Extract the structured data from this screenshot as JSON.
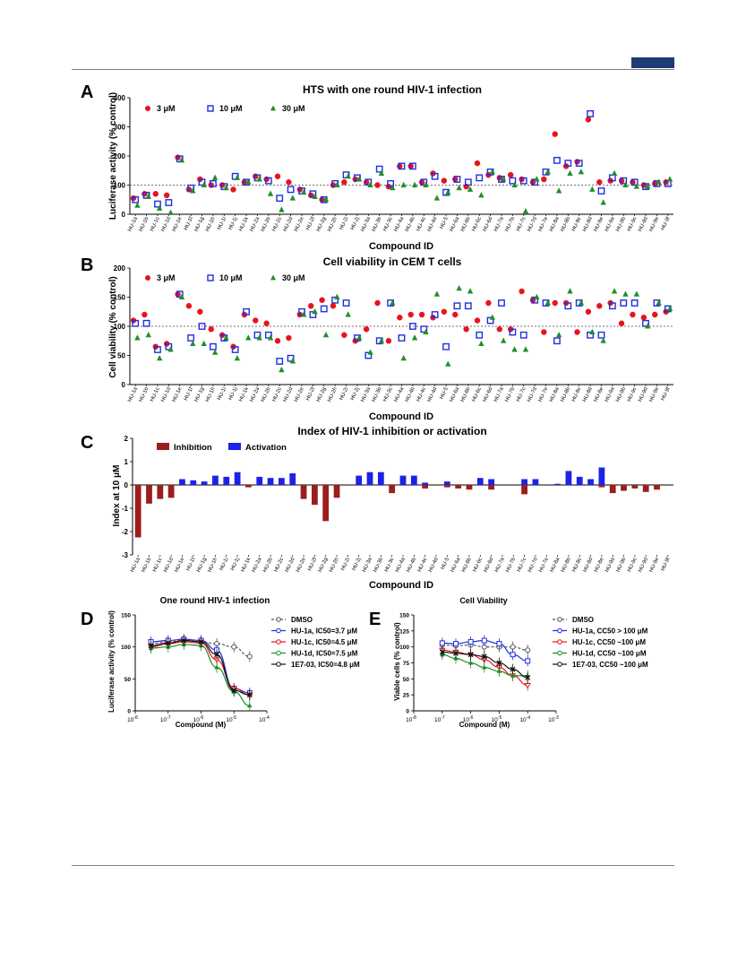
{
  "panels": {
    "A": {
      "letter": "A",
      "title": "HTS with one round HIV-1 infection",
      "xlabel": "Compound ID",
      "ylabel": "Luciferase activity (% control)",
      "legend": [
        "3 μM",
        "10 μM",
        "30 μM"
      ]
    },
    "B": {
      "letter": "B",
      "title": "Cell viability in CEM T cells",
      "xlabel": "Compound ID",
      "ylabel": "Cell viability  (% control)",
      "legend": [
        "3 μM",
        "10 μM",
        "30 μM"
      ]
    },
    "C": {
      "letter": "C",
      "title": "Index of HIV-1 inhibition or activation",
      "xlabel": "Compound ID",
      "ylabel": "Index at 10 μM",
      "legend": [
        "Inhibition",
        "Activation"
      ]
    },
    "D": {
      "letter": "D",
      "title": "One round HIV-1 infection",
      "xlabel": "Compound (M)",
      "ylabel": "Luciferase activity (% control)",
      "legend": [
        "DMSO",
        "HU-1a, IC50=3.7 μM",
        "HU-1c, IC50=4.5 μM",
        "HU-1d, IC50=7.5 μM",
        "1E7-03, IC50=4.8 μM"
      ]
    },
    "E": {
      "letter": "E",
      "title": "Cell Viability",
      "xlabel": "Compound (M)",
      "ylabel": "Viable cells (% control)",
      "legend": [
        "DMSO",
        "HU-1a, CC50 > 100 μM",
        "HU-1c, CC50 ~100 μM",
        "HU-1d, CC50 ~100 μM",
        "1E7-03, CC50 ~100 μM"
      ]
    }
  },
  "colors": {
    "red": "#e8141b",
    "blue": "#1f2fe0",
    "green": "#1f8f2a",
    "darkred": "#9c1d1d",
    "barblue": "#1c22e6",
    "black": "#111111",
    "gray": "#555555"
  },
  "chart_data": [
    {
      "id": "A",
      "type": "scatter",
      "title": "HTS with one round HIV-1 infection",
      "xlabel": "Compound ID",
      "ylabel": "Luciferase activity (% control)",
      "ylim": [
        0,
        400
      ],
      "yticks": [
        0,
        100,
        200,
        300,
        400
      ],
      "reference_line": 100,
      "categories": [
        "HU-1a",
        "HU-1b",
        "HU-1c",
        "HU-1d",
        "HU-1e",
        "HU-1f",
        "HU-1g",
        "HU-1h",
        "HU-1i",
        "HU-1j",
        "HU-1k",
        "HU-2a",
        "HU-2b",
        "HU-2c",
        "HU-2d",
        "HU-2e",
        "HU-2f",
        "HU-2g",
        "HU-2h",
        "HU-2i",
        "HU-2j",
        "HU-3a",
        "HU-3b",
        "HU-3c",
        "HU-4a",
        "HU-4b",
        "HU-4c",
        "HU-4d",
        "HU-5",
        "HU-6a",
        "HU-6b",
        "HU-6c",
        "HU-6d",
        "HU-7a",
        "HU-7b",
        "HU-7c",
        "HU-7d",
        "HU-7e",
        "HU-8a",
        "HU-8b",
        "HU-8c",
        "HU-8d",
        "HU-8e",
        "HU-9a",
        "HU-9b",
        "HU-9c",
        "HU-9d",
        "HU-9e",
        "HU-9f"
      ],
      "series": [
        {
          "name": "3 μM",
          "marker": "circle",
          "values": [
            55,
            70,
            70,
            65,
            195,
            85,
            120,
            100,
            100,
            85,
            110,
            130,
            120,
            130,
            110,
            85,
            65,
            50,
            100,
            110,
            120,
            110,
            100,
            95,
            165,
            165,
            110,
            140,
            115,
            120,
            95,
            175,
            135,
            125,
            135,
            120,
            110,
            120,
            275,
            165,
            180,
            325,
            110,
            115,
            115,
            110,
            100,
            105,
            110
          ]
        },
        {
          "name": "10 μM",
          "marker": "square",
          "values": [
            50,
            65,
            35,
            40,
            190,
            90,
            110,
            105,
            95,
            130,
            110,
            125,
            115,
            55,
            85,
            80,
            70,
            50,
            105,
            135,
            125,
            110,
            155,
            105,
            165,
            165,
            110,
            130,
            75,
            120,
            110,
            125,
            145,
            120,
            115,
            115,
            110,
            145,
            185,
            175,
            175,
            345,
            80,
            125,
            115,
            110,
            95,
            105,
            105
          ]
        },
        {
          "name": "30 μM",
          "marker": "triangle",
          "values": [
            30,
            60,
            20,
            5,
            185,
            80,
            100,
            125,
            90,
            125,
            110,
            120,
            70,
            15,
            55,
            75,
            60,
            50,
            100,
            130,
            120,
            100,
            140,
            90,
            100,
            100,
            100,
            55,
            75,
            90,
            85,
            65,
            145,
            120,
            100,
            10,
            120,
            145,
            80,
            140,
            145,
            85,
            40,
            140,
            100,
            95,
            95,
            110,
            120
          ]
        }
      ]
    },
    {
      "id": "B",
      "type": "scatter",
      "title": "Cell viability in CEM T cells",
      "xlabel": "Compound ID",
      "ylabel": "Cell viability  (% control)",
      "ylim": [
        0,
        200
      ],
      "yticks": [
        0,
        50,
        100,
        150,
        200
      ],
      "reference_line": 100,
      "categories": [
        "HU-1a",
        "HU-1b",
        "HU-1c",
        "HU-1d",
        "HU-1e",
        "HU-1f",
        "HU-1g",
        "HU-1h",
        "HU-1i",
        "HU-1j",
        "HU-1k",
        "HU-2a",
        "HU-2b",
        "HU-2c",
        "HU-2d",
        "HU-2e",
        "HU-2f",
        "HU-2g",
        "HU-2h",
        "HU-2i",
        "HU-2j",
        "HU-3a",
        "HU-3b",
        "HU-3c",
        "HU-4a",
        "HU-4b",
        "HU-4c",
        "HU-4d",
        "HU-5",
        "HU-6a",
        "HU-6b",
        "HU-6c",
        "HU-6d",
        "HU-7a",
        "HU-7b",
        "HU-7c",
        "HU-7d",
        "HU-7e",
        "HU-8a",
        "HU-8b",
        "HU-8c",
        "HU-8d",
        "HU-8e",
        "HU-9a",
        "HU-9b",
        "HU-9c",
        "HU-9d",
        "HU-9e",
        "HU-9f"
      ],
      "series": [
        {
          "name": "3 μM",
          "marker": "circle",
          "values": [
            110,
            120,
            65,
            70,
            155,
            135,
            125,
            95,
            85,
            65,
            120,
            110,
            105,
            75,
            80,
            120,
            135,
            145,
            135,
            85,
            75,
            95,
            140,
            75,
            115,
            120,
            120,
            115,
            125,
            120,
            95,
            110,
            140,
            95,
            95,
            160,
            145,
            90,
            140,
            140,
            90,
            125,
            135,
            140,
            105,
            120,
            115,
            120,
            125
          ]
        },
        {
          "name": "10 μM",
          "marker": "square",
          "values": [
            105,
            105,
            60,
            65,
            155,
            80,
            100,
            65,
            80,
            60,
            125,
            85,
            85,
            40,
            45,
            125,
            120,
            130,
            145,
            140,
            80,
            50,
            75,
            140,
            80,
            100,
            95,
            120,
            65,
            135,
            135,
            85,
            110,
            140,
            90,
            85,
            145,
            140,
            75,
            135,
            140,
            85,
            85,
            135,
            140,
            140,
            105,
            140,
            130
          ]
        },
        {
          "name": "30 μM",
          "marker": "triangle",
          "values": [
            80,
            85,
            45,
            60,
            150,
            70,
            70,
            55,
            80,
            45,
            80,
            80,
            80,
            25,
            40,
            120,
            125,
            85,
            150,
            120,
            80,
            55,
            75,
            140,
            45,
            80,
            90,
            155,
            35,
            165,
            160,
            70,
            115,
            75,
            60,
            60,
            150,
            140,
            85,
            160,
            140,
            90,
            75,
            160,
            155,
            155,
            100,
            140,
            130
          ]
        }
      ]
    },
    {
      "id": "C",
      "type": "bar",
      "title": "Index of HIV-1 inhibition or activation",
      "xlabel": "Compound ID",
      "ylabel": "Index at 10 μM",
      "ylim": [
        -3,
        2
      ],
      "yticks": [
        -3,
        -2,
        -1,
        0,
        1,
        2
      ],
      "categories": [
        "HU-1a",
        "HU-1b",
        "HU-1c",
        "HU-1d",
        "HU-1e",
        "HU-1f",
        "HU-1g",
        "HU-1h",
        "HU-1i",
        "HU-1j",
        "HU-1k",
        "HU-2a",
        "HU-2b",
        "HU-2c",
        "HU-2d",
        "HU-2e",
        "HU-2f",
        "HU-2g",
        "HU-2h",
        "HU-2i",
        "HU-2j",
        "HU-3a",
        "HU-3b",
        "HU-3c",
        "HU-4a",
        "HU-4b",
        "HU-4c",
        "HU-4d",
        "HU-5",
        "HU-6a",
        "HU-6b",
        "HU-6c",
        "HU-6d",
        "HU-7a",
        "HU-7b",
        "HU-7c",
        "HU-7d",
        "HU-7e",
        "HU-8a",
        "HU-8b",
        "HU-8c",
        "HU-8d",
        "HU-8e",
        "HU-9a",
        "HU-9b",
        "HU-9c",
        "HU-9d",
        "HU-9e",
        "HU-9f"
      ],
      "series": [
        {
          "name": "Inhibition",
          "values": [
            -2.25,
            -0.8,
            -0.6,
            -0.55,
            0,
            0,
            0,
            0,
            0,
            0,
            -0.1,
            0,
            0,
            0,
            0,
            -0.6,
            -0.85,
            -1.55,
            -0.55,
            0,
            0,
            0,
            0,
            -0.35,
            0,
            0,
            -0.15,
            0,
            -0.1,
            -0.15,
            -0.2,
            0,
            -0.2,
            0,
            0,
            -0.4,
            0,
            0,
            0,
            0,
            0,
            0,
            -0.1,
            -0.35,
            -0.25,
            -0.15,
            -0.3,
            -0.2,
            0
          ]
        },
        {
          "name": "Activation",
          "values": [
            0,
            0,
            0,
            0,
            0.25,
            0.2,
            0.15,
            0.4,
            0.35,
            0.55,
            0,
            0.35,
            0.3,
            0.3,
            0.5,
            0,
            0,
            0,
            0,
            0,
            0.4,
            0.55,
            0.55,
            0,
            0.4,
            0.4,
            0.1,
            0,
            0.15,
            0,
            0,
            0.3,
            0.25,
            0,
            0,
            0.25,
            0.25,
            0,
            0.05,
            0.6,
            0.35,
            0.25,
            0.75,
            0,
            0,
            0,
            0,
            0,
            0
          ]
        }
      ]
    },
    {
      "id": "D",
      "type": "line",
      "title": "One round HIV-1 infection",
      "xlabel": "Compound (M)",
      "ylabel": "Luciferase activity (% control)",
      "xscale": "log",
      "xlim": [
        1e-08,
        0.0001
      ],
      "ylim": [
        0,
        150
      ],
      "yticks": [
        0,
        50,
        100,
        150
      ],
      "xticks": [
        "10^-8",
        "10^-7",
        "10^-6",
        "10^-5",
        "10^-4"
      ],
      "series": [
        {
          "name": "DMSO",
          "x": [
            3e-08,
            1e-07,
            3e-07,
            1e-06,
            3e-06,
            1e-05,
            3e-05
          ],
          "y": [
            105,
            108,
            110,
            108,
            105,
            100,
            85
          ]
        },
        {
          "name": "HU-1a, IC50=3.7 μM",
          "x": [
            3e-08,
            1e-07,
            3e-07,
            1e-06,
            3e-06,
            1e-05,
            3e-05
          ],
          "y": [
            108,
            110,
            112,
            110,
            95,
            35,
            28
          ]
        },
        {
          "name": "HU-1c, IC50=4.5 μM",
          "x": [
            3e-08,
            1e-07,
            3e-07,
            1e-06,
            3e-06,
            1e-05,
            3e-05
          ],
          "y": [
            100,
            105,
            108,
            106,
            80,
            35,
            25
          ]
        },
        {
          "name": "HU-1d, IC50=7.5 μM",
          "x": [
            3e-08,
            1e-07,
            3e-07,
            1e-06,
            3e-06,
            1e-05,
            3e-05
          ],
          "y": [
            98,
            100,
            104,
            102,
            68,
            30,
            8
          ]
        },
        {
          "name": "1E7-03, IC50=4.8 μM",
          "x": [
            3e-08,
            1e-07,
            3e-07,
            1e-06,
            3e-06,
            1e-05,
            3e-05
          ],
          "y": [
            102,
            106,
            110,
            108,
            88,
            32,
            25
          ]
        }
      ]
    },
    {
      "id": "E",
      "type": "line",
      "title": "Cell Viability",
      "xlabel": "Compound (M)",
      "ylabel": "Viable cells (% control)",
      "xscale": "log",
      "xlim": [
        1e-08,
        0.001
      ],
      "ylim": [
        0,
        150
      ],
      "yticks": [
        0,
        25,
        50,
        75,
        100,
        125,
        150
      ],
      "xticks": [
        "10^-8",
        "10^-7",
        "10^-6",
        "10^-5",
        "10^-4",
        "10^-3"
      ],
      "series": [
        {
          "name": "DMSO",
          "x": [
            1e-07,
            3e-07,
            1e-06,
            3e-06,
            1e-05,
            3e-05,
            0.0001
          ],
          "y": [
            103,
            102,
            103,
            100,
            100,
            100,
            95
          ]
        },
        {
          "name": "HU-1a, CC50 > 100 μM",
          "x": [
            1e-07,
            3e-07,
            1e-06,
            3e-06,
            1e-05,
            3e-05,
            0.0001
          ],
          "y": [
            106,
            105,
            108,
            110,
            105,
            88,
            78
          ]
        },
        {
          "name": "HU-1c, CC50 ~100 μM",
          "x": [
            1e-07,
            3e-07,
            1e-06,
            3e-06,
            1e-05,
            3e-05,
            0.0001
          ],
          "y": [
            95,
            92,
            88,
            80,
            68,
            55,
            40
          ]
        },
        {
          "name": "HU-1d, CC50 ~100 μM",
          "x": [
            1e-07,
            3e-07,
            1e-06,
            3e-06,
            1e-05,
            3e-05,
            0.0001
          ],
          "y": [
            88,
            82,
            75,
            68,
            62,
            55,
            55
          ]
        },
        {
          "name": "1E7-03, CC50 ~100 μM",
          "x": [
            1e-07,
            3e-07,
            1e-06,
            3e-06,
            1e-05,
            3e-05,
            0.0001
          ],
          "y": [
            92,
            90,
            88,
            85,
            75,
            65,
            52
          ]
        }
      ]
    }
  ]
}
